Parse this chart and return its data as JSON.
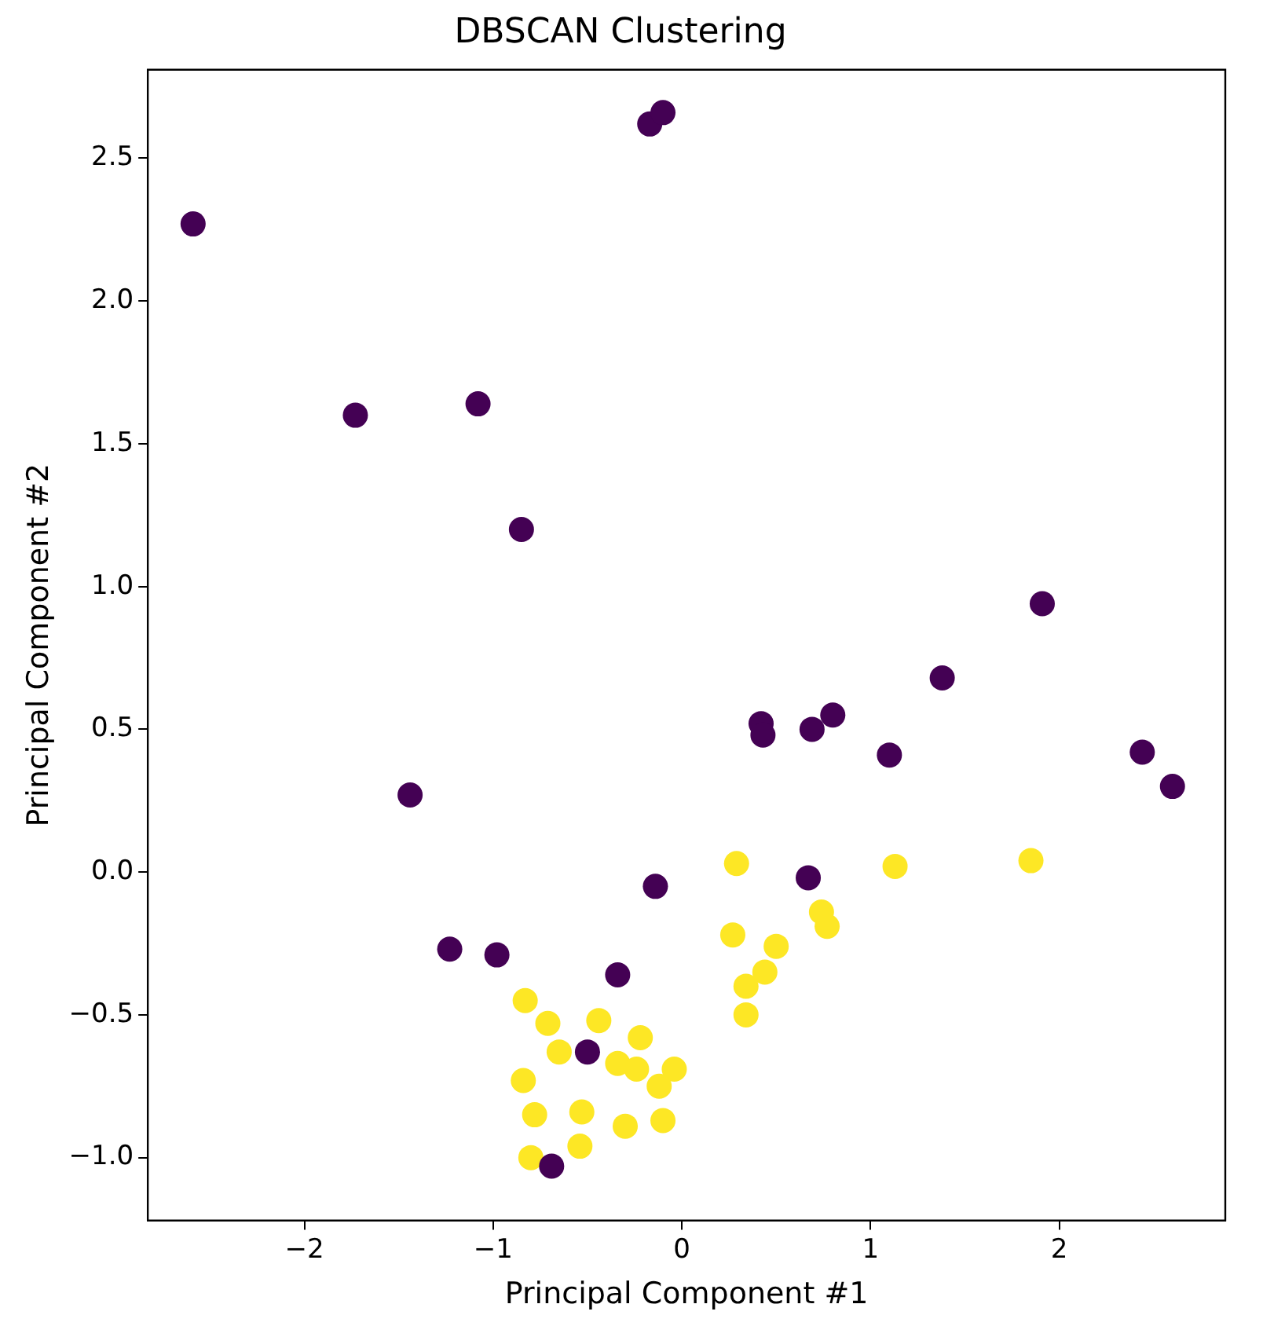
{
  "chart_data": {
    "type": "scatter",
    "title": "DBSCAN Clustering",
    "xlabel": "Principal Component #1",
    "ylabel": "Principal Component #2",
    "xlim": [
      -2.83,
      2.88
    ],
    "ylim": [
      -1.22,
      2.81
    ],
    "xticks": [
      {
        "value": -2,
        "label": "−2"
      },
      {
        "value": -1,
        "label": "−1"
      },
      0,
      1,
      2
    ],
    "yticks": [
      {
        "value": -1,
        "label": "−1.0"
      },
      {
        "value": -0.5,
        "label": "−0.5"
      },
      {
        "value": 0,
        "label": "0.0"
      },
      {
        "value": 0.5,
        "label": "0.5"
      },
      {
        "value": 1,
        "label": "1.0"
      },
      {
        "value": 1.5,
        "label": "1.5"
      },
      {
        "value": 2,
        "label": "2.0"
      },
      {
        "value": 2.5,
        "label": "2.5"
      }
    ],
    "grid": false,
    "legend": false,
    "marker": "circle",
    "series": [
      {
        "color": "#440154",
        "x": [
          -2.59,
          -0.17,
          -0.1,
          -1.73,
          -1.08,
          -0.85,
          1.91,
          1.38,
          0.42,
          0.43,
          0.69,
          0.8,
          1.1,
          2.44,
          2.6,
          -1.44,
          -0.14,
          0.67,
          -1.23,
          -0.98,
          -0.34,
          -0.5,
          -0.69
        ],
        "values": [
          2.27,
          2.62,
          2.66,
          1.6,
          1.64,
          1.2,
          0.94,
          0.68,
          0.52,
          0.48,
          0.5,
          0.55,
          0.41,
          0.42,
          0.3,
          0.27,
          -0.05,
          -0.02,
          -0.27,
          -0.29,
          -0.36,
          -0.63,
          -1.03
        ]
      },
      {
        "color": "#fde725",
        "x": [
          0.29,
          1.13,
          1.85,
          0.74,
          0.77,
          0.27,
          0.5,
          0.44,
          0.34,
          0.34,
          -0.83,
          -0.71,
          -0.44,
          -0.65,
          -0.22,
          -0.34,
          -0.24,
          -0.04,
          -0.12,
          -0.84,
          -0.78,
          -0.53,
          -0.3,
          -0.1,
          -0.54,
          -0.8
        ],
        "values": [
          0.03,
          0.02,
          0.04,
          -0.14,
          -0.19,
          -0.22,
          -0.26,
          -0.35,
          -0.4,
          -0.5,
          -0.45,
          -0.53,
          -0.52,
          -0.63,
          -0.58,
          -0.67,
          -0.69,
          -0.69,
          -0.75,
          -0.73,
          -0.85,
          -0.84,
          -0.89,
          -0.87,
          -0.96,
          -1.0
        ]
      }
    ]
  }
}
